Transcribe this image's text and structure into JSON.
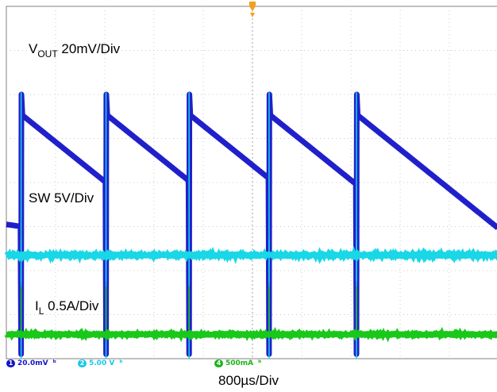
{
  "labels": {
    "vout_main": "V",
    "vout_sub": "OUT",
    "vout_scale": " 20mV/Div",
    "sw": "SW 5V/Div",
    "il_main": "I",
    "il_sub": "L",
    "il_scale": " 0.5A/Div",
    "timebase": "800µs/Div"
  },
  "status_bar": {
    "ch1_num": "1",
    "ch1_scale": "20.0mV",
    "ch1_bw": "ᵇ",
    "ch2_num": "2",
    "ch2_scale": "5.00 V",
    "ch2_bw": "ᵇ",
    "ch4_num": "4",
    "ch4_scale": "500mA",
    "ch4_bw": "ᵇ"
  },
  "chart_data": {
    "type": "line",
    "divisions": {
      "x": 10,
      "y": 8
    },
    "grid": true,
    "x_unit": "µs",
    "x_per_div": 800,
    "trigger_marker": "top",
    "switching_events_us": [
      240,
      1620,
      2970,
      4270,
      5690
    ],
    "series": [
      {
        "name": "VOUT",
        "color": "#1a1adc",
        "scale": "20mV/Div",
        "behavior": "sawtooth: jumps up at each switching event then decays linearly",
        "level_div": [
          3.0,
          5.55,
          4.0
        ],
        "note": "values are [pre-event level, peak after event, level before next event] in divisions above bottom"
      },
      {
        "name": "SW",
        "color": "#1ad0e8",
        "scale": "5V/Div",
        "behavior": "flat baseline with narrow spikes at each switching event",
        "level_div": 2.35
      },
      {
        "name": "IL",
        "color": "#1aee1a",
        "scale": "0.5A/Div",
        "behavior": "flat baseline with narrow spikes at each switching event",
        "level_div": 0.55
      }
    ],
    "palette": {
      "grid": "#c8c8c8",
      "frame": "#808080",
      "ch1": "#1414c8",
      "ch2": "#19d7e6",
      "ch4": "#19c819"
    }
  }
}
